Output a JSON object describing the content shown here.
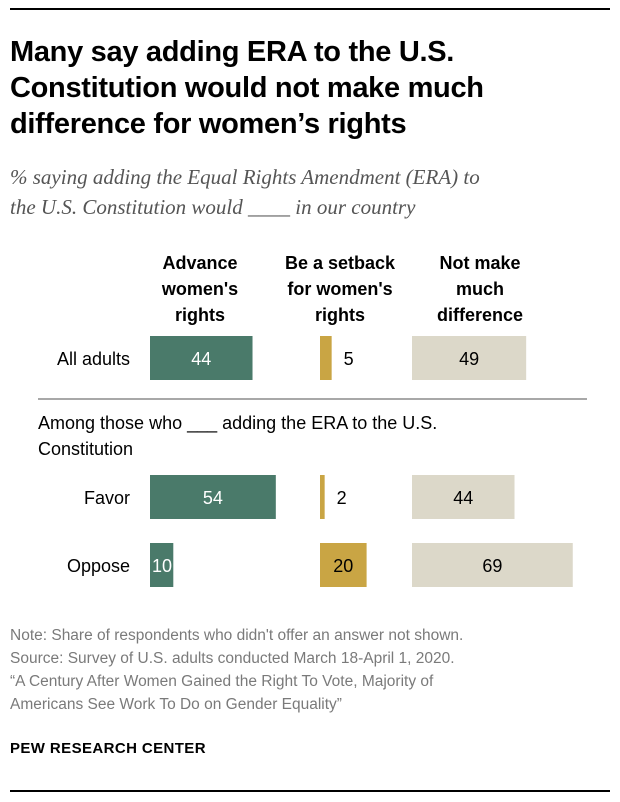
{
  "header": {
    "title_lines": [
      "Many say adding ERA to the U.S.",
      "Constitution would not make much",
      "difference for women’s rights"
    ],
    "subtitle_lines": [
      "% saying adding the Equal Rights Amendment (ERA) to",
      "the U.S. Constitution would ____ in our country"
    ]
  },
  "chart_data": {
    "type": "bar",
    "orientation": "horizontal",
    "title": "Many say adding ERA to the U.S. Constitution would not make much difference for women’s rights",
    "columns": [
      {
        "key": "advance",
        "label_lines": [
          "Advance",
          "women's",
          "rights"
        ],
        "color": "#4a7a6a"
      },
      {
        "key": "setback",
        "label_lines": [
          "Be a setback",
          "for women's",
          "rights"
        ],
        "color": "#c9a544"
      },
      {
        "key": "no_difference",
        "label_lines": [
          "Not make",
          "much",
          "difference"
        ],
        "color": "#dcd8c9"
      }
    ],
    "rows": [
      {
        "label": "All adults",
        "advance": 44,
        "setback": 5,
        "no_difference": 49
      },
      {
        "label": "Favor",
        "advance": 54,
        "setback": 2,
        "no_difference": 44
      },
      {
        "label": "Oppose",
        "advance": 10,
        "setback": 20,
        "no_difference": 69
      }
    ],
    "group_label_lines": [
      "Among those who ___ adding the ERA to the U.S.",
      "Constitution"
    ],
    "units": "%"
  },
  "notes": {
    "lines": [
      "Note: Share of respondents who didn't offer an answer not shown.",
      "Source: Survey of U.S. adults conducted March 18-April 1, 2020.",
      "“A Century After Women Gained the Right To Vote, Majority of",
      "Americans See Work To Do on Gender Equality”"
    ]
  },
  "brand": "PEW RESEARCH CENTER"
}
